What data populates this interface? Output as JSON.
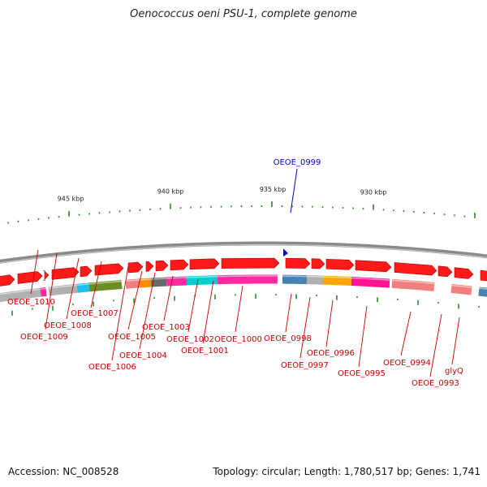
{
  "title": "Oenococcus oeni PSU-1, complete genome",
  "footer": {
    "accession": "Accession: NC_008528",
    "summary": "Topology: circular; Length: 1,780,517 bp; Genes: 1,741"
  },
  "scale_labels": [
    "945 kbp",
    "940 kbp",
    "935 kbp",
    "930 kbp"
  ],
  "highlight_gene": "OEOE_0999",
  "gene_labels": [
    "OEOE_1010",
    "OEOE_1009",
    "OEOE_1008",
    "OEOE_1007",
    "OEOE_1006",
    "OEOE_1005",
    "OEOE_1004",
    "OEOE_1003",
    "OEOE_1002",
    "OEOE_1001",
    "OEOE_1000",
    "OEOE_0998",
    "OEOE_0997",
    "OEOE_0996",
    "OEOE_0995",
    "OEOE_0994",
    "OEOE_0993",
    "glyQ"
  ],
  "colors": {
    "gene_arrow": "#ff1a1a",
    "backbone": "#8a8a8a",
    "tick": "#2a8a2a",
    "label": "#cc0000",
    "highlight": "#0000cc",
    "cog": [
      "#b0b0b0",
      "#ff2aa0",
      "#1ec0f0",
      "#6b8e23",
      "#f08080",
      "#ff8c00",
      "#696969",
      "#00ced1",
      "#4682b4",
      "#ffa500",
      "#ff1493"
    ]
  }
}
